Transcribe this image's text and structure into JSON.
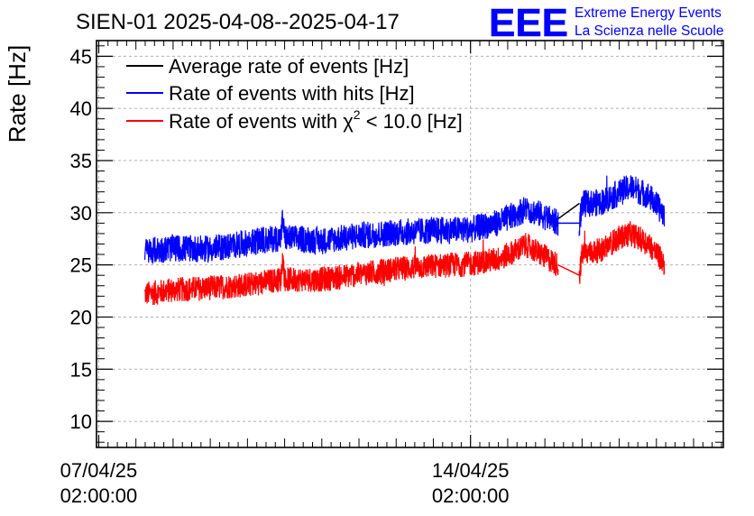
{
  "chart_data": {
    "type": "line",
    "title": "SIEN-01 2025-04-08--2025-04-17",
    "xlabel": "",
    "ylabel": "Rate [Hz]",
    "ylim": [
      7.5,
      46.5
    ],
    "yticks": [
      10,
      15,
      20,
      25,
      30,
      35,
      40,
      45
    ],
    "x_unit": "days since 07/04/25 02:00:00",
    "xlim": [
      -0.06,
      16.8
    ],
    "xticks": [
      {
        "x": 0,
        "label_date": "07/04/25",
        "label_time": "02:00:00"
      },
      {
        "x": 10,
        "label_date": "14/04/25",
        "label_time": "02:00:00"
      }
    ],
    "grid": true,
    "legend_position": "top-left",
    "series": [
      {
        "name": "Average rate of events [Hz]",
        "color": "#000000",
        "x": [
          12.35,
          12.93
        ],
        "y": [
          29.4,
          30.9
        ]
      },
      {
        "name": "Rate of events with hits [Hz]",
        "color": "#0000ff",
        "noise": 1.3,
        "x": [
          1.24,
          2,
          3,
          4,
          4.9,
          4.95,
          5,
          6,
          7,
          8,
          9,
          10,
          10.8,
          11.5,
          11.9,
          12.35,
          12.93,
          13,
          13.5,
          14,
          14.3,
          14.8,
          15.22
        ],
        "y": [
          26.3,
          26.6,
          26.5,
          27.1,
          27.6,
          29.5,
          27.6,
          27.3,
          27.8,
          28.1,
          28.3,
          28.4,
          29.1,
          30.4,
          29.8,
          29.0,
          29.0,
          30.8,
          31.0,
          31.9,
          32.5,
          31.6,
          29.8
        ]
      },
      {
        "name": "Rate of events with χ2 < 10.0 [Hz]",
        "label_main": "Rate of events with ",
        "label_chi": "χ",
        "label_sup": "2",
        "label_tail": " < 10.0 [Hz]",
        "color": "#ff0000",
        "noise": 1.2,
        "x": [
          1.24,
          2,
          3,
          4,
          4.9,
          4.95,
          5,
          6,
          7,
          8,
          9,
          10,
          10.8,
          11.5,
          11.9,
          12.35,
          12.93,
          13,
          13.5,
          14,
          14.3,
          14.8,
          15.22
        ],
        "y": [
          22.2,
          22.6,
          22.8,
          23.1,
          23.6,
          25.8,
          23.6,
          23.6,
          24.1,
          24.6,
          24.9,
          25.1,
          25.6,
          26.9,
          26.0,
          25.0,
          24.0,
          26.0,
          26.4,
          27.6,
          28.0,
          27.0,
          25.1
        ]
      }
    ]
  },
  "logo": {
    "mark": "EEE",
    "line1": "Extreme Energy Events",
    "line2": "La Scienza nelle Scuole",
    "color": "#0000ff"
  }
}
